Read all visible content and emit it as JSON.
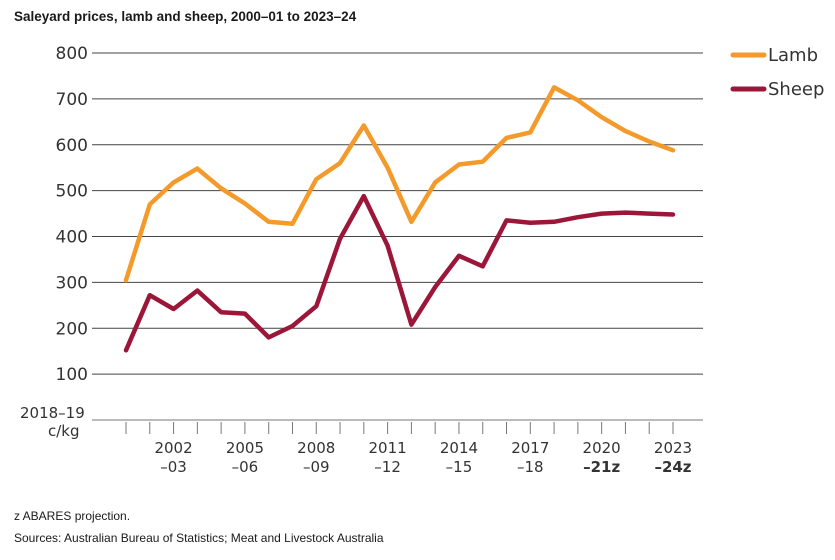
{
  "title": "Saleyard prices, lamb and sheep, 2000–01 to 2023–24",
  "footnote": "z ABARES projection.",
  "source": "Sources: Australian Bureau of Statistics; Meat and Livestock Australia",
  "colors": {
    "lamb": "#f39a2b",
    "sheep": "#9b1638",
    "grid": "#444444",
    "axis": "#777777"
  },
  "chart_data": {
    "type": "line",
    "ylabel": [
      "2018–19",
      "c/kg"
    ],
    "ylim": [
      0,
      800
    ],
    "yticks": [
      100,
      200,
      300,
      400,
      500,
      600,
      700,
      800
    ],
    "x": [
      "2000-01",
      "2001-02",
      "2002-03",
      "2003-04",
      "2004-05",
      "2005-06",
      "2006-07",
      "2007-08",
      "2008-09",
      "2009-10",
      "2010-11",
      "2011-12",
      "2012-13",
      "2013-14",
      "2014-15",
      "2015-16",
      "2016-17",
      "2017-18",
      "2018-19",
      "2019-20",
      "2020-21",
      "2021-22",
      "2022-23",
      "2023-24"
    ],
    "xtick_labels": [
      {
        "index": 2,
        "line1": "2002",
        "line2": "–03",
        "projection": false
      },
      {
        "index": 5,
        "line1": "2005",
        "line2": "–06",
        "projection": false
      },
      {
        "index": 8,
        "line1": "2008",
        "line2": "–09",
        "projection": false
      },
      {
        "index": 11,
        "line1": "2011",
        "line2": "–12",
        "projection": false
      },
      {
        "index": 14,
        "line1": "2014",
        "line2": "–15",
        "projection": false
      },
      {
        "index": 17,
        "line1": "2017",
        "line2": "–18",
        "projection": false
      },
      {
        "index": 20,
        "line1": "2020",
        "line2": "–21z",
        "projection": true
      },
      {
        "index": 23,
        "line1": "2023",
        "line2": "–24z",
        "projection": true
      }
    ],
    "series": [
      {
        "name": "Lamb",
        "color": "#f39a2b",
        "values": [
          305,
          470,
          518,
          548,
          505,
          472,
          432,
          428,
          525,
          560,
          642,
          550,
          432,
          518,
          557,
          563,
          615,
          627,
          725,
          697,
          660,
          630,
          607,
          588
        ]
      },
      {
        "name": "Sheep",
        "color": "#9b1638",
        "values": [
          152,
          272,
          242,
          282,
          235,
          232,
          180,
          205,
          248,
          395,
          488,
          380,
          208,
          290,
          358,
          335,
          435,
          430,
          432,
          442,
          450,
          452,
          450,
          448
        ]
      }
    ],
    "grid": true,
    "legend": "top-right"
  }
}
